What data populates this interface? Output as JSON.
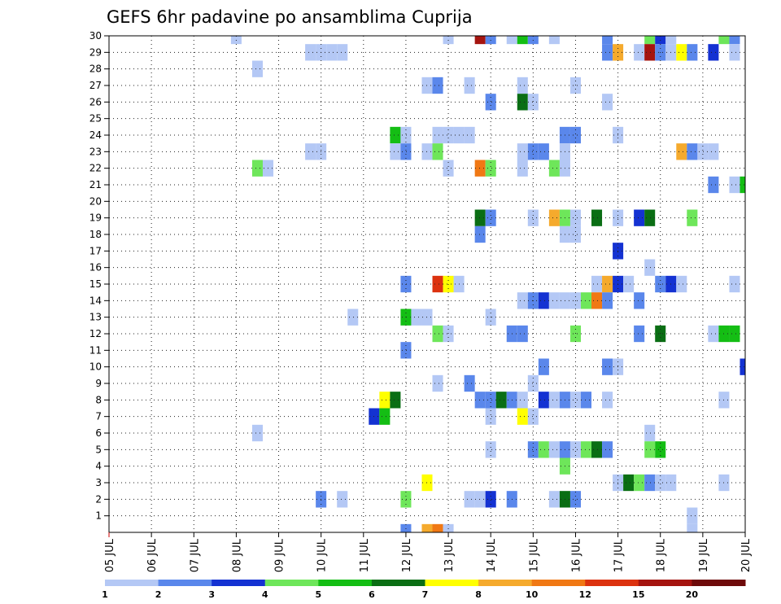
{
  "chart_data": {
    "type": "heatmap",
    "title": "GEFS 6hr padavine po ansamblima Cuprija",
    "xlabel": "",
    "ylabel": "",
    "x_tick_labels": [
      "05 JUL",
      "06 JUL",
      "07 JUL",
      "08 JUL",
      "09 JUL",
      "10 JUL",
      "11 JUL",
      "12 JUL",
      "13 JUL",
      "14 JUL",
      "15 JUL",
      "16 JUL",
      "17 JUL",
      "18 JUL",
      "19 JUL",
      "20 JUL"
    ],
    "y_tick_labels": [
      "1",
      "2",
      "3",
      "4",
      "5",
      "6",
      "7",
      "8",
      "9",
      "10",
      "11",
      "12",
      "13",
      "14",
      "15",
      "16",
      "17",
      "18",
      "19",
      "20",
      "21",
      "22",
      "23",
      "24",
      "25",
      "26",
      "27",
      "28",
      "29",
      "30"
    ],
    "x_range": [
      "05 JUL 00Z",
      "20 JUL 00Z"
    ],
    "y_range": [
      0,
      30
    ],
    "time_step_hours": 6,
    "grid": true,
    "colorbar": {
      "labels": [
        "1",
        "2",
        "3",
        "4",
        "5",
        "6",
        "7",
        "8",
        "10",
        "12",
        "15",
        "20"
      ],
      "colors": [
        "#b4c8f5",
        "#5a87eb",
        "#1432d2",
        "#6ee65a",
        "#14be14",
        "#0a6e14",
        "#ffff00",
        "#f5aa2d",
        "#f07814",
        "#dc320f",
        "#a5140f",
        "#6e0a0a"
      ]
    },
    "cells": [
      {
        "t": "08 JUL 00Z",
        "member": 30,
        "color": "#b4c8f5"
      },
      {
        "t": "13 JUL 00Z",
        "member": 30,
        "color": "#b4c8f5"
      },
      {
        "t": "13 JUL 18Z",
        "member": 30,
        "color": "#a5140f"
      },
      {
        "t": "14 JUL 00Z",
        "member": 30,
        "color": "#5a87eb"
      },
      {
        "t": "14 JUL 12Z",
        "member": 30,
        "color": "#b4c8f5"
      },
      {
        "t": "14 JUL 18Z",
        "member": 30,
        "color": "#14be14"
      },
      {
        "t": "15 JUL 00Z",
        "member": 30,
        "color": "#5a87eb"
      },
      {
        "t": "15 JUL 12Z",
        "member": 30,
        "color": "#b4c8f5"
      },
      {
        "t": "16 JUL 18Z",
        "member": 30,
        "color": "#5a87eb"
      },
      {
        "t": "17 JUL 18Z",
        "member": 30,
        "color": "#6ee65a"
      },
      {
        "t": "18 JUL 00Z",
        "member": 30,
        "color": "#1432d2"
      },
      {
        "t": "18 JUL 06Z",
        "member": 30,
        "color": "#b4c8f5"
      },
      {
        "t": "19 JUL 12Z",
        "member": 30,
        "color": "#6ee65a"
      },
      {
        "t": "19 JUL 18Z",
        "member": 30,
        "color": "#5a87eb"
      },
      {
        "t": "09 JUL 18Z",
        "member": 29,
        "color": "#b4c8f5"
      },
      {
        "t": "10 JUL 00Z",
        "member": 29,
        "color": "#b4c8f5"
      },
      {
        "t": "10 JUL 06Z",
        "member": 29,
        "color": "#b4c8f5"
      },
      {
        "t": "10 JUL 12Z",
        "member": 29,
        "color": "#b4c8f5"
      },
      {
        "t": "16 JUL 18Z",
        "member": 29,
        "color": "#5a87eb"
      },
      {
        "t": "17 JUL 00Z",
        "member": 29,
        "color": "#f5aa2d"
      },
      {
        "t": "17 JUL 12Z",
        "member": 29,
        "color": "#b4c8f5"
      },
      {
        "t": "17 JUL 18Z",
        "member": 29,
        "color": "#a5140f"
      },
      {
        "t": "18 JUL 00Z",
        "member": 29,
        "color": "#5a87eb"
      },
      {
        "t": "18 JUL 06Z",
        "member": 29,
        "color": "#b4c8f5"
      },
      {
        "t": "18 JUL 12Z",
        "member": 29,
        "color": "#ffff00"
      },
      {
        "t": "18 JUL 18Z",
        "member": 29,
        "color": "#5a87eb"
      },
      {
        "t": "19 JUL 06Z",
        "member": 29,
        "color": "#1432d2"
      },
      {
        "t": "19 JUL 18Z",
        "member": 29,
        "color": "#b4c8f5"
      },
      {
        "t": "08 JUL 12Z",
        "member": 28,
        "color": "#b4c8f5"
      },
      {
        "t": "12 JUL 12Z",
        "member": 27,
        "color": "#b4c8f5"
      },
      {
        "t": "12 JUL 18Z",
        "member": 27,
        "color": "#5a87eb"
      },
      {
        "t": "13 JUL 12Z",
        "member": 27,
        "color": "#b4c8f5"
      },
      {
        "t": "14 JUL 18Z",
        "member": 27,
        "color": "#b4c8f5"
      },
      {
        "t": "16 JUL 00Z",
        "member": 27,
        "color": "#b4c8f5"
      },
      {
        "t": "14 JUL 00Z",
        "member": 26,
        "color": "#5a87eb"
      },
      {
        "t": "14 JUL 18Z",
        "member": 26,
        "color": "#0a6e14"
      },
      {
        "t": "15 JUL 00Z",
        "member": 26,
        "color": "#b4c8f5"
      },
      {
        "t": "16 JUL 18Z",
        "member": 26,
        "color": "#b4c8f5"
      },
      {
        "t": "11 JUL 18Z",
        "member": 24,
        "color": "#14be14"
      },
      {
        "t": "12 JUL 00Z",
        "member": 24,
        "color": "#b4c8f5"
      },
      {
        "t": "12 JUL 18Z",
        "member": 24,
        "color": "#b4c8f5"
      },
      {
        "t": "13 JUL 00Z",
        "member": 24,
        "color": "#b4c8f5"
      },
      {
        "t": "13 JUL 06Z",
        "member": 24,
        "color": "#b4c8f5"
      },
      {
        "t": "13 JUL 12Z",
        "member": 24,
        "color": "#b4c8f5"
      },
      {
        "t": "15 JUL 18Z",
        "member": 24,
        "color": "#5a87eb"
      },
      {
        "t": "16 JUL 00Z",
        "member": 24,
        "color": "#5a87eb"
      },
      {
        "t": "17 JUL 00Z",
        "member": 24,
        "color": "#b4c8f5"
      },
      {
        "t": "09 JUL 18Z",
        "member": 23,
        "color": "#b4c8f5"
      },
      {
        "t": "10 JUL 00Z",
        "member": 23,
        "color": "#b4c8f5"
      },
      {
        "t": "11 JUL 18Z",
        "member": 23,
        "color": "#b4c8f5"
      },
      {
        "t": "12 JUL 00Z",
        "member": 23,
        "color": "#5a87eb"
      },
      {
        "t": "12 JUL 12Z",
        "member": 23,
        "color": "#b4c8f5"
      },
      {
        "t": "12 JUL 18Z",
        "member": 23,
        "color": "#6ee65a"
      },
      {
        "t": "14 JUL 18Z",
        "member": 23,
        "color": "#b4c8f5"
      },
      {
        "t": "15 JUL 00Z",
        "member": 23,
        "color": "#5a87eb"
      },
      {
        "t": "15 JUL 06Z",
        "member": 23,
        "color": "#5a87eb"
      },
      {
        "t": "15 JUL 18Z",
        "member": 23,
        "color": "#b4c8f5"
      },
      {
        "t": "18 JUL 12Z",
        "member": 23,
        "color": "#f5aa2d"
      },
      {
        "t": "18 JUL 18Z",
        "member": 23,
        "color": "#5a87eb"
      },
      {
        "t": "19 JUL 00Z",
        "member": 23,
        "color": "#b4c8f5"
      },
      {
        "t": "19 JUL 06Z",
        "member": 23,
        "color": "#b4c8f5"
      },
      {
        "t": "08 JUL 12Z",
        "member": 22,
        "color": "#6ee65a"
      },
      {
        "t": "08 JUL 18Z",
        "member": 22,
        "color": "#b4c8f5"
      },
      {
        "t": "13 JUL 00Z",
        "member": 22,
        "color": "#b4c8f5"
      },
      {
        "t": "13 JUL 18Z",
        "member": 22,
        "color": "#f07814"
      },
      {
        "t": "14 JUL 00Z",
        "member": 22,
        "color": "#6ee65a"
      },
      {
        "t": "14 JUL 18Z",
        "member": 22,
        "color": "#b4c8f5"
      },
      {
        "t": "15 JUL 12Z",
        "member": 22,
        "color": "#6ee65a"
      },
      {
        "t": "15 JUL 18Z",
        "member": 22,
        "color": "#b4c8f5"
      },
      {
        "t": "19 JUL 06Z",
        "member": 21,
        "color": "#5a87eb"
      },
      {
        "t": "19 JUL 18Z",
        "member": 21,
        "color": "#b4c8f5"
      },
      {
        "t": "20 JUL 00Z",
        "member": 21,
        "color": "#14be14"
      },
      {
        "t": "13 JUL 18Z",
        "member": 19,
        "color": "#0a6e14"
      },
      {
        "t": "14 JUL 00Z",
        "member": 19,
        "color": "#5a87eb"
      },
      {
        "t": "15 JUL 00Z",
        "member": 19,
        "color": "#b4c8f5"
      },
      {
        "t": "15 JUL 12Z",
        "member": 19,
        "color": "#f5aa2d"
      },
      {
        "t": "15 JUL 18Z",
        "member": 19,
        "color": "#6ee65a"
      },
      {
        "t": "16 JUL 00Z",
        "member": 19,
        "color": "#b4c8f5"
      },
      {
        "t": "16 JUL 12Z",
        "member": 19,
        "color": "#0a6e14"
      },
      {
        "t": "17 JUL 00Z",
        "member": 19,
        "color": "#b4c8f5"
      },
      {
        "t": "17 JUL 12Z",
        "member": 19,
        "color": "#1432d2"
      },
      {
        "t": "17 JUL 18Z",
        "member": 19,
        "color": "#0a6e14"
      },
      {
        "t": "18 JUL 18Z",
        "member": 19,
        "color": "#6ee65a"
      },
      {
        "t": "13 JUL 18Z",
        "member": 18,
        "color": "#5a87eb"
      },
      {
        "t": "15 JUL 18Z",
        "member": 18,
        "color": "#b4c8f5"
      },
      {
        "t": "16 JUL 00Z",
        "member": 18,
        "color": "#b4c8f5"
      },
      {
        "t": "17 JUL 00Z",
        "member": 17,
        "color": "#1432d2"
      },
      {
        "t": "17 JUL 18Z",
        "member": 16,
        "color": "#b4c8f5"
      },
      {
        "t": "12 JUL 00Z",
        "member": 15,
        "color": "#5a87eb"
      },
      {
        "t": "12 JUL 18Z",
        "member": 15,
        "color": "#dc320f"
      },
      {
        "t": "13 JUL 00Z",
        "member": 15,
        "color": "#ffff00"
      },
      {
        "t": "13 JUL 06Z",
        "member": 15,
        "color": "#b4c8f5"
      },
      {
        "t": "16 JUL 12Z",
        "member": 15,
        "color": "#b4c8f5"
      },
      {
        "t": "16 JUL 18Z",
        "member": 15,
        "color": "#f5aa2d"
      },
      {
        "t": "17 JUL 00Z",
        "member": 15,
        "color": "#1432d2"
      },
      {
        "t": "17 JUL 06Z",
        "member": 15,
        "color": "#b4c8f5"
      },
      {
        "t": "18 JUL 00Z",
        "member": 15,
        "color": "#5a87eb"
      },
      {
        "t": "18 JUL 06Z",
        "member": 15,
        "color": "#1432d2"
      },
      {
        "t": "18 JUL 12Z",
        "member": 15,
        "color": "#b4c8f5"
      },
      {
        "t": "19 JUL 18Z",
        "member": 15,
        "color": "#b4c8f5"
      },
      {
        "t": "14 JUL 18Z",
        "member": 14,
        "color": "#b4c8f5"
      },
      {
        "t": "15 JUL 00Z",
        "member": 14,
        "color": "#5a87eb"
      },
      {
        "t": "15 JUL 06Z",
        "member": 14,
        "color": "#1432d2"
      },
      {
        "t": "15 JUL 12Z",
        "member": 14,
        "color": "#b4c8f5"
      },
      {
        "t": "15 JUL 18Z",
        "member": 14,
        "color": "#b4c8f5"
      },
      {
        "t": "16 JUL 00Z",
        "member": 14,
        "color": "#b4c8f5"
      },
      {
        "t": "16 JUL 06Z",
        "member": 14,
        "color": "#6ee65a"
      },
      {
        "t": "16 JUL 12Z",
        "member": 14,
        "color": "#f07814"
      },
      {
        "t": "16 JUL 18Z",
        "member": 14,
        "color": "#5a87eb"
      },
      {
        "t": "17 JUL 12Z",
        "member": 14,
        "color": "#5a87eb"
      },
      {
        "t": "10 JUL 18Z",
        "member": 13,
        "color": "#b4c8f5"
      },
      {
        "t": "12 JUL 00Z",
        "member": 13,
        "color": "#14be14"
      },
      {
        "t": "12 JUL 06Z",
        "member": 13,
        "color": "#b4c8f5"
      },
      {
        "t": "12 JUL 12Z",
        "member": 13,
        "color": "#b4c8f5"
      },
      {
        "t": "14 JUL 00Z",
        "member": 13,
        "color": "#b4c8f5"
      },
      {
        "t": "12 JUL 18Z",
        "member": 12,
        "color": "#6ee65a"
      },
      {
        "t": "13 JUL 00Z",
        "member": 12,
        "color": "#b4c8f5"
      },
      {
        "t": "14 JUL 12Z",
        "member": 12,
        "color": "#5a87eb"
      },
      {
        "t": "14 JUL 18Z",
        "member": 12,
        "color": "#5a87eb"
      },
      {
        "t": "16 JUL 00Z",
        "member": 12,
        "color": "#6ee65a"
      },
      {
        "t": "17 JUL 12Z",
        "member": 12,
        "color": "#5a87eb"
      },
      {
        "t": "18 JUL 00Z",
        "member": 12,
        "color": "#0a6e14"
      },
      {
        "t": "19 JUL 06Z",
        "member": 12,
        "color": "#b4c8f5"
      },
      {
        "t": "19 JUL 12Z",
        "member": 12,
        "color": "#14be14"
      },
      {
        "t": "19 JUL 18Z",
        "member": 12,
        "color": "#14be14"
      },
      {
        "t": "12 JUL 00Z",
        "member": 11,
        "color": "#5a87eb"
      },
      {
        "t": "15 JUL 06Z",
        "member": 10,
        "color": "#5a87eb"
      },
      {
        "t": "16 JUL 18Z",
        "member": 10,
        "color": "#5a87eb"
      },
      {
        "t": "17 JUL 00Z",
        "member": 10,
        "color": "#b4c8f5"
      },
      {
        "t": "20 JUL 00Z",
        "member": 10,
        "color": "#1432d2"
      },
      {
        "t": "12 JUL 18Z",
        "member": 9,
        "color": "#b4c8f5"
      },
      {
        "t": "13 JUL 12Z",
        "member": 9,
        "color": "#5a87eb"
      },
      {
        "t": "15 JUL 00Z",
        "member": 9,
        "color": "#b4c8f5"
      },
      {
        "t": "11 JUL 12Z",
        "member": 8,
        "color": "#ffff00"
      },
      {
        "t": "11 JUL 18Z",
        "member": 8,
        "color": "#0a6e14"
      },
      {
        "t": "13 JUL 18Z",
        "member": 8,
        "color": "#5a87eb"
      },
      {
        "t": "14 JUL 00Z",
        "member": 8,
        "color": "#5a87eb"
      },
      {
        "t": "14 JUL 06Z",
        "member": 8,
        "color": "#0a6e14"
      },
      {
        "t": "14 JUL 12Z",
        "member": 8,
        "color": "#5a87eb"
      },
      {
        "t": "14 JUL 18Z",
        "member": 8,
        "color": "#b4c8f5"
      },
      {
        "t": "15 JUL 06Z",
        "member": 8,
        "color": "#1432d2"
      },
      {
        "t": "15 JUL 12Z",
        "member": 8,
        "color": "#b4c8f5"
      },
      {
        "t": "15 JUL 18Z",
        "member": 8,
        "color": "#5a87eb"
      },
      {
        "t": "16 JUL 00Z",
        "member": 8,
        "color": "#b4c8f5"
      },
      {
        "t": "16 JUL 06Z",
        "member": 8,
        "color": "#5a87eb"
      },
      {
        "t": "16 JUL 18Z",
        "member": 8,
        "color": "#b4c8f5"
      },
      {
        "t": "19 JUL 12Z",
        "member": 8,
        "color": "#b4c8f5"
      },
      {
        "t": "11 JUL 06Z",
        "member": 7,
        "color": "#1432d2"
      },
      {
        "t": "11 JUL 12Z",
        "member": 7,
        "color": "#14be14"
      },
      {
        "t": "14 JUL 00Z",
        "member": 7,
        "color": "#b4c8f5"
      },
      {
        "t": "14 JUL 18Z",
        "member": 7,
        "color": "#ffff00"
      },
      {
        "t": "15 JUL 00Z",
        "member": 7,
        "color": "#b4c8f5"
      },
      {
        "t": "08 JUL 12Z",
        "member": 6,
        "color": "#b4c8f5"
      },
      {
        "t": "17 JUL 18Z",
        "member": 6,
        "color": "#b4c8f5"
      },
      {
        "t": "14 JUL 00Z",
        "member": 5,
        "color": "#b4c8f5"
      },
      {
        "t": "15 JUL 00Z",
        "member": 5,
        "color": "#5a87eb"
      },
      {
        "t": "15 JUL 06Z",
        "member": 5,
        "color": "#6ee65a"
      },
      {
        "t": "15 JUL 12Z",
        "member": 5,
        "color": "#b4c8f5"
      },
      {
        "t": "15 JUL 18Z",
        "member": 5,
        "color": "#5a87eb"
      },
      {
        "t": "16 JUL 00Z",
        "member": 5,
        "color": "#b4c8f5"
      },
      {
        "t": "16 JUL 06Z",
        "member": 5,
        "color": "#6ee65a"
      },
      {
        "t": "16 JUL 12Z",
        "member": 5,
        "color": "#0a6e14"
      },
      {
        "t": "16 JUL 18Z",
        "member": 5,
        "color": "#5a87eb"
      },
      {
        "t": "17 JUL 18Z",
        "member": 5,
        "color": "#6ee65a"
      },
      {
        "t": "18 JUL 00Z",
        "member": 5,
        "color": "#14be14"
      },
      {
        "t": "15 JUL 18Z",
        "member": 4,
        "color": "#6ee65a"
      },
      {
        "t": "12 JUL 12Z",
        "member": 3,
        "color": "#ffff00"
      },
      {
        "t": "17 JUL 00Z",
        "member": 3,
        "color": "#b4c8f5"
      },
      {
        "t": "17 JUL 06Z",
        "member": 3,
        "color": "#0a6e14"
      },
      {
        "t": "17 JUL 12Z",
        "member": 3,
        "color": "#6ee65a"
      },
      {
        "t": "17 JUL 18Z",
        "member": 3,
        "color": "#5a87eb"
      },
      {
        "t": "18 JUL 00Z",
        "member": 3,
        "color": "#b4c8f5"
      },
      {
        "t": "18 JUL 06Z",
        "member": 3,
        "color": "#b4c8f5"
      },
      {
        "t": "19 JUL 12Z",
        "member": 3,
        "color": "#b4c8f5"
      },
      {
        "t": "10 JUL 00Z",
        "member": 2,
        "color": "#5a87eb"
      },
      {
        "t": "10 JUL 12Z",
        "member": 2,
        "color": "#b4c8f5"
      },
      {
        "t": "12 JUL 00Z",
        "member": 2,
        "color": "#6ee65a"
      },
      {
        "t": "13 JUL 12Z",
        "member": 2,
        "color": "#b4c8f5"
      },
      {
        "t": "13 JUL 18Z",
        "member": 2,
        "color": "#b4c8f5"
      },
      {
        "t": "14 JUL 00Z",
        "member": 2,
        "color": "#1432d2"
      },
      {
        "t": "14 JUL 12Z",
        "member": 2,
        "color": "#5a87eb"
      },
      {
        "t": "15 JUL 12Z",
        "member": 2,
        "color": "#b4c8f5"
      },
      {
        "t": "15 JUL 18Z",
        "member": 2,
        "color": "#0a6e14"
      },
      {
        "t": "16 JUL 00Z",
        "member": 2,
        "color": "#5a87eb"
      },
      {
        "t": "18 JUL 18Z",
        "member": 1,
        "color": "#b4c8f5"
      },
      {
        "t": "12 JUL 00Z",
        "member": 0,
        "color": "#5a87eb"
      },
      {
        "t": "12 JUL 12Z",
        "member": 0,
        "color": "#f5aa2d"
      },
      {
        "t": "12 JUL 18Z",
        "member": 0,
        "color": "#f07814"
      },
      {
        "t": "13 JUL 00Z",
        "member": 0,
        "color": "#b4c8f5"
      },
      {
        "t": "18 JUL 18Z",
        "member": 0,
        "color": "#b4c8f5"
      }
    ]
  }
}
